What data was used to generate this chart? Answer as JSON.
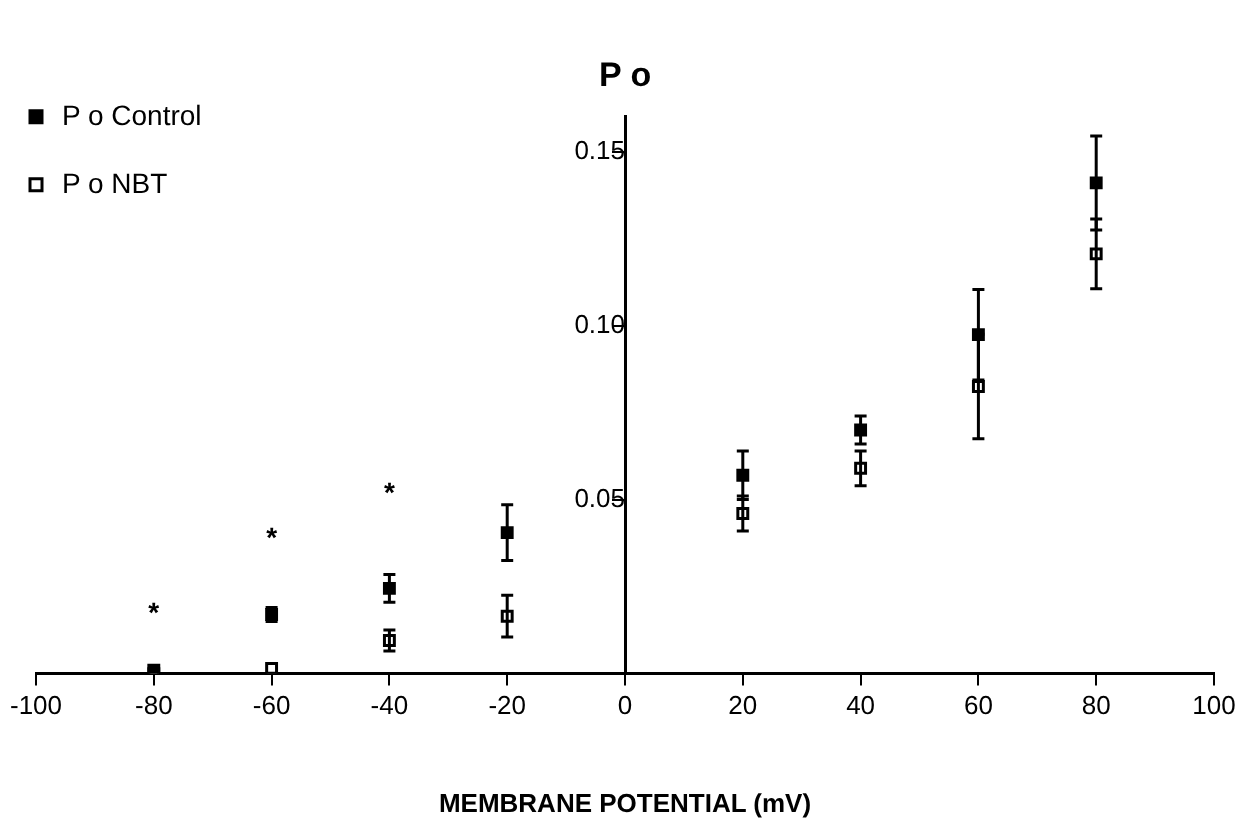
{
  "chart_data": {
    "type": "scatter",
    "title": "P o",
    "xlabel": "MEMBRANE POTENTIAL (mV)",
    "x": [
      -80,
      -60,
      -40,
      -20,
      20,
      40,
      60,
      80
    ],
    "series": [
      {
        "name": "P o Control",
        "color": "#000000",
        "values": [
          0.001,
          0.017,
          0.0245,
          0.0405,
          0.057,
          0.07,
          0.0974,
          0.141
        ],
        "errors": [
          null,
          0.002,
          0.004,
          0.008,
          0.007,
          0.004,
          0.013,
          0.0135
        ]
      },
      {
        "name": "P o NBT",
        "color": "#000000",
        "values": [
          0,
          0.0015,
          0.0095,
          0.0165,
          0.046,
          0.059,
          0.0825,
          0.1206
        ],
        "errors": [
          null,
          null,
          0.003,
          0.006,
          0.005,
          0.005,
          0.015,
          0.01
        ]
      }
    ],
    "annotations": [
      "*",
      "*",
      "*"
    ],
    "xlim": [
      -100,
      100
    ],
    "xticks": [
      -100,
      -80,
      -60,
      -40,
      -20,
      0,
      20,
      40,
      60,
      80,
      100
    ],
    "ylim": [
      0,
      0.16
    ],
    "yticks": [
      {
        "value": 0.05,
        "label": "0.05"
      },
      {
        "value": 0.1,
        "label": "0.10"
      },
      {
        "value": 0.15,
        "label": "0.15"
      }
    ],
    "grid": false,
    "legend": "top left",
    "marker": "square"
  }
}
